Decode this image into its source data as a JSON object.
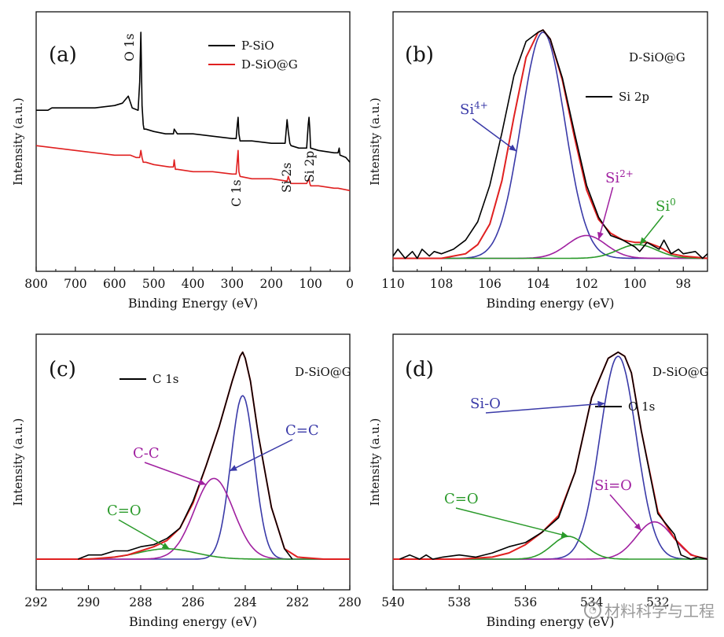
{
  "watermark": "材料科学与工程",
  "chart_data": [
    {
      "type": "line",
      "panel_label": "(a)",
      "xlabel": "Binding Energy (eV)",
      "ylabel": "Intensity (a.u.)",
      "xlim": [
        800,
        0
      ],
      "ylim": [
        0,
        1
      ],
      "xticks": [
        800,
        700,
        600,
        500,
        400,
        300,
        200,
        100,
        0
      ],
      "legend": [
        {
          "name": "P-SiO",
          "color": "#000000"
        },
        {
          "name": "D-SiO@G",
          "color": "#e02020"
        }
      ],
      "annotations": [
        {
          "text": "O 1s",
          "x": 532,
          "rotation": -90
        },
        {
          "text": "C 1s",
          "x": 285,
          "rotation": -90
        },
        {
          "text": "Si 2s",
          "x": 155,
          "rotation": -90
        },
        {
          "text": "Si 2p",
          "x": 104,
          "rotation": -90
        }
      ],
      "series": [
        {
          "name": "P-SiO",
          "color": "#000000",
          "x": [
            800,
            770,
            760,
            700,
            650,
            600,
            580,
            565,
            555,
            540,
            536,
            533,
            530,
            527,
            525,
            520,
            500,
            470,
            450,
            448,
            440,
            430,
            400,
            350,
            300,
            290,
            287,
            285,
            283,
            280,
            250,
            200,
            165,
            160,
            157,
            153,
            150,
            130,
            110,
            106,
            104,
            102,
            100,
            80,
            40,
            30,
            27,
            25,
            10,
            0
          ],
          "values": [
            0.66,
            0.66,
            0.67,
            0.67,
            0.67,
            0.68,
            0.69,
            0.72,
            0.67,
            0.66,
            0.78,
            0.99,
            0.68,
            0.6,
            0.58,
            0.58,
            0.57,
            0.56,
            0.56,
            0.58,
            0.56,
            0.56,
            0.56,
            0.55,
            0.54,
            0.54,
            0.6,
            0.63,
            0.56,
            0.53,
            0.53,
            0.52,
            0.52,
            0.62,
            0.57,
            0.52,
            0.51,
            0.5,
            0.5,
            0.6,
            0.63,
            0.58,
            0.5,
            0.49,
            0.48,
            0.48,
            0.5,
            0.47,
            0.46,
            0.44
          ]
        },
        {
          "name": "D-SiO@G",
          "color": "#e02020",
          "x": [
            800,
            700,
            600,
            560,
            545,
            536,
            533,
            530,
            527,
            520,
            500,
            460,
            450,
            448,
            445,
            440,
            400,
            350,
            300,
            290,
            287,
            285,
            283,
            280,
            250,
            200,
            160,
            157,
            153,
            150,
            110,
            104,
            102,
            100,
            80,
            40,
            30,
            0
          ],
          "values": [
            0.51,
            0.49,
            0.47,
            0.47,
            0.46,
            0.46,
            0.49,
            0.46,
            0.44,
            0.44,
            0.43,
            0.42,
            0.42,
            0.45,
            0.41,
            0.41,
            0.4,
            0.4,
            0.39,
            0.39,
            0.45,
            0.49,
            0.4,
            0.38,
            0.37,
            0.37,
            0.36,
            0.38,
            0.36,
            0.35,
            0.35,
            0.37,
            0.35,
            0.34,
            0.34,
            0.33,
            0.33,
            0.32
          ]
        }
      ]
    },
    {
      "type": "line",
      "panel_label": "(b)",
      "title": "D-SiO@G",
      "xlabel": "Binding energy (eV)",
      "ylabel": "Intensity (a.u.)",
      "xlim": [
        110,
        97
      ],
      "ylim": [
        0,
        1
      ],
      "xticks": [
        110,
        108,
        106,
        104,
        102,
        100,
        98
      ],
      "legend": [
        {
          "name": "Si 2p",
          "color": "#000000"
        }
      ],
      "annotations": [
        {
          "text": "Si4+",
          "label": "Si",
          "sup": "4+",
          "color": "#3a3aa8",
          "target_x": 104.9
        },
        {
          "text": "Si2+",
          "label": "Si",
          "sup": "2+",
          "color": "#a020a0",
          "target_x": 101.5
        },
        {
          "text": "Si0",
          "label": "Si",
          "sup": "0",
          "color": "#2a9a2a",
          "target_x": 99.8
        }
      ],
      "series": [
        {
          "name": "Si 2p",
          "color": "#000000",
          "x": [
            110,
            109.8,
            109.5,
            109.2,
            109,
            108.8,
            108.5,
            108.3,
            108,
            107.5,
            107,
            106.5,
            106,
            105.5,
            105,
            104.5,
            104,
            103.8,
            103.5,
            103,
            102.5,
            102,
            101.5,
            101,
            100.5,
            100,
            99.8,
            99.5,
            99,
            98.8,
            98.5,
            98.2,
            98,
            97.5,
            97.2,
            97
          ],
          "values": [
            0.01,
            0.04,
            0.0,
            0.03,
            0.0,
            0.04,
            0.01,
            0.03,
            0.02,
            0.04,
            0.08,
            0.16,
            0.32,
            0.55,
            0.8,
            0.95,
            0.99,
            1.0,
            0.96,
            0.79,
            0.55,
            0.32,
            0.18,
            0.1,
            0.08,
            0.05,
            0.03,
            0.07,
            0.04,
            0.08,
            0.02,
            0.04,
            0.02,
            0.03,
            0.0,
            0.02
          ]
        },
        {
          "name": "Fit envelope",
          "color": "#e02020",
          "x": [
            110,
            109,
            108,
            107,
            106.5,
            106,
            105.5,
            105,
            104.5,
            104,
            103.8,
            103.5,
            103,
            102.5,
            102,
            101.5,
            101,
            100.5,
            100,
            99.5,
            99,
            98.5,
            98,
            97
          ],
          "values": [
            0.0,
            0.0,
            0.0,
            0.02,
            0.06,
            0.15,
            0.34,
            0.62,
            0.88,
            0.99,
            1.0,
            0.96,
            0.78,
            0.53,
            0.3,
            0.17,
            0.11,
            0.08,
            0.07,
            0.07,
            0.05,
            0.02,
            0.01,
            0.0
          ]
        },
        {
          "name": "Si4+",
          "type": "gaussian",
          "color": "#3a3aa8",
          "center": 103.8,
          "amplitude": 0.99,
          "sigma": 0.9
        },
        {
          "name": "Si2+",
          "type": "gaussian",
          "color": "#a020a0",
          "center": 102.0,
          "amplitude": 0.1,
          "sigma": 0.8
        },
        {
          "name": "Si0",
          "type": "gaussian",
          "color": "#2a9a2a",
          "center": 99.9,
          "amplitude": 0.06,
          "sigma": 0.8
        }
      ]
    },
    {
      "type": "line",
      "panel_label": "(c)",
      "title": "D-SiO@G",
      "xlabel": "Binding energy (eV)",
      "ylabel": "Intensity (a.u.)",
      "xlim": [
        292,
        280
      ],
      "ylim": [
        0,
        1
      ],
      "xticks": [
        292,
        290,
        288,
        286,
        284,
        282,
        280
      ],
      "legend": [
        {
          "name": "C 1s",
          "color": "#000000"
        }
      ],
      "annotations": [
        {
          "text": "C=C",
          "label": "C=C",
          "color": "#3a3aa8",
          "target_x": 284.6
        },
        {
          "text": "C-C",
          "label": "C-C",
          "color": "#a020a0",
          "target_x": 285.5
        },
        {
          "text": "C=O",
          "label": "C=O",
          "color": "#2a9a2a",
          "target_x": 286.9
        }
      ],
      "series": [
        {
          "name": "C 1s",
          "color": "#000000",
          "x": [
            290.4,
            290,
            289.5,
            289,
            288.5,
            288,
            287.5,
            287,
            286.5,
            286,
            285.5,
            285,
            284.5,
            284.2,
            284.1,
            284,
            283.8,
            283.5,
            283,
            282.5,
            282.2
          ],
          "values": [
            0.0,
            0.02,
            0.02,
            0.04,
            0.04,
            0.06,
            0.07,
            0.1,
            0.15,
            0.28,
            0.45,
            0.64,
            0.86,
            0.98,
            1.0,
            0.97,
            0.86,
            0.6,
            0.25,
            0.05,
            0.0
          ]
        },
        {
          "name": "Fit envelope",
          "color": "#e02020",
          "x": [
            292,
            291,
            290,
            289,
            288.5,
            288,
            287.5,
            287,
            286.5,
            286,
            285.5,
            285,
            284.5,
            284.2,
            284.1,
            284,
            283.8,
            283.5,
            283,
            282.5,
            282,
            281,
            280
          ],
          "values": [
            0.0,
            0.0,
            0.0,
            0.01,
            0.02,
            0.04,
            0.06,
            0.09,
            0.15,
            0.27,
            0.45,
            0.64,
            0.86,
            0.98,
            1.0,
            0.97,
            0.86,
            0.6,
            0.25,
            0.05,
            0.01,
            0.0,
            0.0
          ]
        },
        {
          "name": "C=C",
          "type": "gaussian",
          "color": "#3a3aa8",
          "center": 284.1,
          "amplitude": 0.79,
          "sigma": 0.45
        },
        {
          "name": "C-C",
          "type": "gaussian",
          "color": "#a020a0",
          "center": 285.2,
          "amplitude": 0.39,
          "sigma": 0.75
        },
        {
          "name": "C=O",
          "type": "gaussian",
          "color": "#2a9a2a",
          "center": 287.0,
          "amplitude": 0.05,
          "sigma": 1.1
        }
      ]
    },
    {
      "type": "line",
      "panel_label": "(d)",
      "title": "D-SiO@G",
      "xlabel": "Binding energy (eV)",
      "ylabel": "Intensity (a.u.)",
      "xlim": [
        540,
        530.5
      ],
      "ylim": [
        0,
        1
      ],
      "xticks": [
        540,
        538,
        536,
        534,
        532
      ],
      "legend": [
        {
          "name": "O 1s",
          "color": "#000000"
        }
      ],
      "annotations": [
        {
          "text": "Si-O",
          "label": "Si-O",
          "color": "#3a3aa8",
          "target_x": 533.6
        },
        {
          "text": "Si=O",
          "label": "Si=O",
          "color": "#a020a0",
          "target_x": 532.5
        },
        {
          "text": "C=O",
          "label": "C=O",
          "color": "#2a9a2a",
          "target_x": 534.7
        }
      ],
      "series": [
        {
          "name": "O 1s",
          "color": "#000000",
          "x": [
            539.8,
            539.5,
            539.2,
            539,
            538.8,
            538.5,
            538,
            537.5,
            537,
            536.5,
            536,
            535.5,
            535,
            534.5,
            534,
            533.5,
            533.2,
            533,
            532.8,
            532.5,
            532,
            531.5,
            531.3,
            531,
            530.8,
            530.5
          ],
          "values": [
            0.0,
            0.02,
            0.0,
            0.02,
            0.0,
            0.01,
            0.02,
            0.01,
            0.03,
            0.06,
            0.08,
            0.13,
            0.2,
            0.42,
            0.78,
            0.97,
            1.0,
            0.98,
            0.9,
            0.62,
            0.22,
            0.12,
            0.02,
            0.0,
            0.01,
            0.0
          ]
        },
        {
          "name": "Fit envelope",
          "color": "#e02020",
          "x": [
            540,
            539,
            538,
            537,
            536.5,
            536,
            535.5,
            535,
            534.5,
            534,
            533.5,
            533.2,
            533,
            532.8,
            532.5,
            532,
            531.5,
            531,
            530.5
          ],
          "values": [
            0.0,
            0.0,
            0.0,
            0.01,
            0.03,
            0.07,
            0.13,
            0.21,
            0.42,
            0.78,
            0.97,
            1.0,
            0.98,
            0.9,
            0.62,
            0.23,
            0.1,
            0.02,
            0.0
          ]
        },
        {
          "name": "Si-O",
          "type": "gaussian",
          "color": "#3a3aa8",
          "center": 533.2,
          "amplitude": 0.98,
          "sigma": 0.55
        },
        {
          "name": "Si=O",
          "type": "gaussian",
          "color": "#a020a0",
          "center": 532.1,
          "amplitude": 0.18,
          "sigma": 0.55
        },
        {
          "name": "C=O",
          "type": "gaussian",
          "color": "#2a9a2a",
          "center": 534.7,
          "amplitude": 0.11,
          "sigma": 0.5
        }
      ]
    }
  ]
}
